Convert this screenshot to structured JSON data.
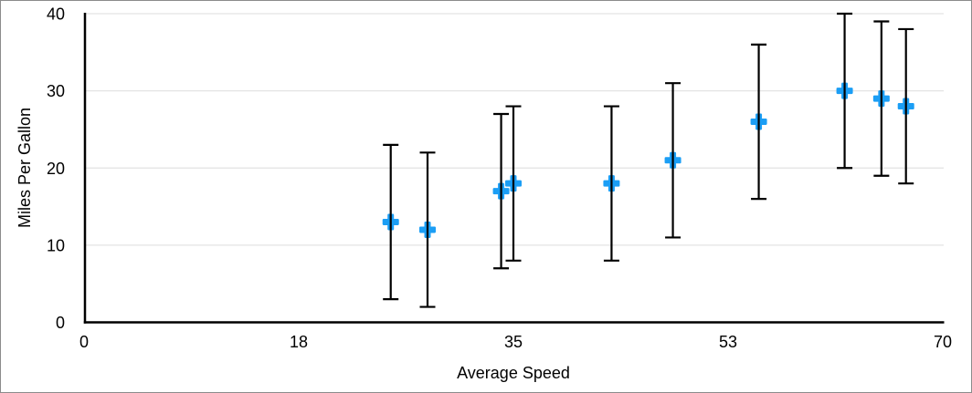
{
  "figure": {
    "background_color": "#ffffff",
    "border_color": "#8c8c8c"
  },
  "chart_data": {
    "type": "scatter",
    "title": "",
    "xlabel": "Average Speed",
    "ylabel": "Miles Per Gallon",
    "xlim": [
      0,
      70
    ],
    "ylim": [
      0,
      40
    ],
    "x_ticks": [
      {
        "value": 0,
        "label": "0"
      },
      {
        "value": 17.5,
        "label": "18"
      },
      {
        "value": 35,
        "label": "35"
      },
      {
        "value": 52.5,
        "label": "53"
      },
      {
        "value": 70,
        "label": "70"
      }
    ],
    "y_ticks": [
      {
        "value": 0,
        "label": "0"
      },
      {
        "value": 10,
        "label": "10"
      },
      {
        "value": 20,
        "label": "20"
      },
      {
        "value": 30,
        "label": "30"
      },
      {
        "value": 40,
        "label": "40"
      }
    ],
    "grid": "horizontal-only",
    "legend": "none",
    "colors": {
      "marker": "#1b9ef5",
      "gridline": "#e3e3e3",
      "axis": "#000000",
      "error_bar": "#000000",
      "text": "#000000"
    },
    "series": [
      {
        "marker": "plus",
        "error_bars": {
          "direction": "both",
          "type": "fixed-value",
          "value": 10
        },
        "points": [
          {
            "x": 25,
            "y": 13
          },
          {
            "x": 28,
            "y": 12
          },
          {
            "x": 34,
            "y": 17
          },
          {
            "x": 35,
            "y": 18
          },
          {
            "x": 43,
            "y": 18
          },
          {
            "x": 48,
            "y": 21
          },
          {
            "x": 55,
            "y": 26
          },
          {
            "x": 62,
            "y": 30
          },
          {
            "x": 65,
            "y": 29
          },
          {
            "x": 67,
            "y": 28
          }
        ]
      }
    ]
  }
}
